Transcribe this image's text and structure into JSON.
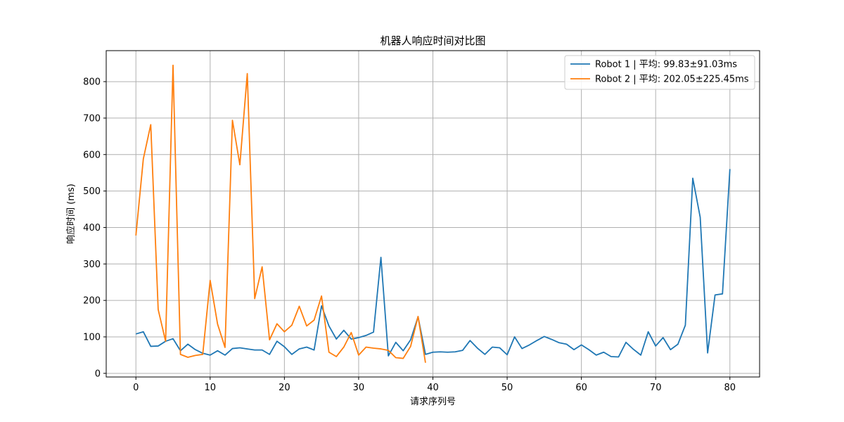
{
  "chart_data": {
    "type": "line",
    "title": "机器人响应时间对比图",
    "xlabel": "请求序列号",
    "ylabel": "响应时间 (ms)",
    "xlim": [
      -4,
      84
    ],
    "ylim": [
      -10,
      885
    ],
    "xticks": [
      0,
      10,
      20,
      30,
      40,
      50,
      60,
      70,
      80
    ],
    "yticks": [
      0,
      100,
      200,
      300,
      400,
      500,
      600,
      700,
      800
    ],
    "grid": true,
    "legend_position": "top-right",
    "series": [
      {
        "name": "Robot 1 | 平均: 99.83±91.03ms",
        "color": "#1f77b4",
        "x": [
          0,
          1,
          2,
          3,
          4,
          5,
          6,
          7,
          8,
          9,
          10,
          11,
          12,
          13,
          14,
          15,
          16,
          17,
          18,
          19,
          20,
          21,
          22,
          23,
          24,
          25,
          26,
          27,
          28,
          29,
          30,
          31,
          32,
          33,
          34,
          35,
          36,
          37,
          38,
          39,
          40,
          41,
          42,
          43,
          44,
          45,
          46,
          47,
          48,
          49,
          50,
          51,
          52,
          53,
          54,
          55,
          56,
          57,
          58,
          59,
          60,
          61,
          62,
          63,
          64,
          65,
          66,
          67,
          68,
          69,
          70,
          71,
          72,
          73,
          74,
          75,
          76,
          77,
          78,
          79,
          80
        ],
        "y": [
          108,
          114,
          74,
          75,
          88,
          95,
          62,
          80,
          65,
          55,
          50,
          62,
          50,
          68,
          70,
          67,
          64,
          64,
          52,
          88,
          73,
          52,
          67,
          72,
          64,
          185,
          130,
          94,
          118,
          94,
          98,
          104,
          113,
          318,
          48,
          85,
          62,
          92,
          155,
          52,
          58,
          59,
          58,
          59,
          63,
          90,
          69,
          52,
          72,
          70,
          51,
          100,
          68,
          78,
          90,
          101,
          93,
          84,
          80,
          65,
          78,
          65,
          50,
          58,
          46,
          45,
          85,
          66,
          50,
          114,
          75,
          98,
          65,
          80,
          132,
          535,
          428,
          56,
          215,
          218,
          560
        ]
      },
      {
        "name": "Robot 2 | 平均: 202.05±225.45ms",
        "color": "#ff7f0e",
        "x": [
          0,
          1,
          2,
          3,
          4,
          5,
          6,
          7,
          8,
          9,
          10,
          11,
          12,
          13,
          14,
          15,
          16,
          17,
          18,
          19,
          20,
          21,
          22,
          23,
          24,
          25,
          26,
          27,
          28,
          29,
          30,
          31,
          32,
          33,
          34,
          35,
          36,
          37,
          38,
          39
        ],
        "y": [
          378,
          588,
          682,
          175,
          88,
          845,
          52,
          44,
          49,
          52,
          255,
          135,
          71,
          694,
          572,
          822,
          205,
          292,
          92,
          136,
          114,
          132,
          184,
          130,
          146,
          212,
          58,
          46,
          72,
          112,
          50,
          72,
          69,
          67,
          63,
          43,
          41,
          74,
          156,
          29
        ]
      }
    ]
  }
}
